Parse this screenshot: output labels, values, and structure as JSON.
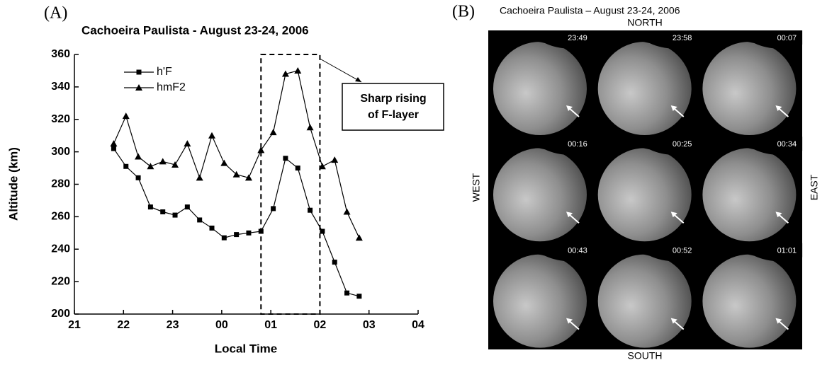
{
  "chart_data": {
    "type": "line",
    "panel_label": "(A)",
    "title": "Cachoeira Paulista - August 23-24, 2006",
    "x_label": "Local Time",
    "y_label": "Altitude (km)",
    "xlim": [
      21,
      28
    ],
    "xticks": [
      21,
      22,
      23,
      {
        "value": 24,
        "label": "00"
      },
      {
        "value": 25,
        "label": "01"
      },
      {
        "value": 26,
        "label": "02"
      },
      {
        "value": 27,
        "label": "03"
      },
      {
        "value": 28,
        "label": "04"
      }
    ],
    "ylim": [
      200,
      360
    ],
    "yticks": [
      200,
      220,
      240,
      260,
      280,
      300,
      320,
      340,
      360
    ],
    "legend": "upper left",
    "x": [
      21.8,
      22.05,
      22.3,
      22.55,
      22.8,
      23.05,
      23.3,
      23.55,
      23.8,
      24.05,
      24.3,
      24.55,
      24.8,
      25.05,
      25.3,
      25.55,
      25.8,
      26.05,
      26.3,
      26.55,
      26.8
    ],
    "series": [
      {
        "name": "h'F",
        "color": "#000000",
        "marker": "square",
        "values": [
          302,
          291,
          284,
          266,
          263,
          261,
          266,
          258,
          253,
          247,
          249,
          250,
          251,
          265,
          296,
          290,
          264,
          251,
          232,
          213,
          211
        ]
      },
      {
        "name": "hmF2",
        "color": "#000000",
        "marker": "triangle",
        "values": [
          305,
          322,
          297,
          291,
          294,
          292,
          305,
          284,
          310,
          293,
          286,
          284,
          301,
          312,
          348,
          350,
          315,
          291,
          295,
          263,
          247
        ]
      }
    ],
    "highlight": {
      "xlim": [
        24.8,
        26
      ],
      "ylim": [
        200,
        360
      ]
    },
    "annotation": [
      "Sharp rising",
      "of F-layer"
    ]
  },
  "image_panel": {
    "panel_label": "(B)",
    "title": "Cachoeira Paulista – August 23-24, 2006",
    "north": "NORTH",
    "south": "SOUTH",
    "west": "WEST",
    "east": "EAST",
    "frames": [
      "23:49",
      "23:58",
      "00:07",
      "00:16",
      "00:25",
      "00:34",
      "00:43",
      "00:52",
      "01:01"
    ]
  }
}
